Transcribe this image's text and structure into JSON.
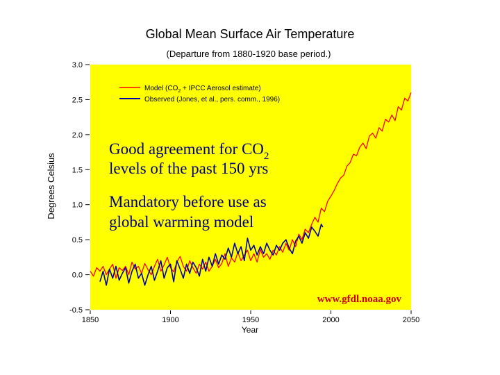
{
  "chart_data": {
    "type": "line",
    "title": "Global Mean Surface Air Temperature",
    "subtitle": "(Departure from 1880-1920 base period.)",
    "xlabel": "Year",
    "ylabel": "Degrees Celsius",
    "xlim": [
      1850,
      2050
    ],
    "ylim": [
      -0.5,
      3.0
    ],
    "x_ticks": [
      1850,
      1900,
      1950,
      2000,
      2050
    ],
    "y_ticks": [
      -0.5,
      0.0,
      0.5,
      1.0,
      1.5,
      2.0,
      2.5,
      3.0
    ],
    "y_tick_labels": [
      "-0.5",
      "0.0",
      "0.5",
      "1.0",
      "1.5",
      "2.0",
      "2.5",
      "3.0"
    ],
    "grid": false,
    "background": "#ffff00",
    "legend_position": "top-left",
    "series": [
      {
        "name_pre": "Model (CO",
        "name_sub": "2",
        "name_post": " + IPCC Aerosol estimate)",
        "color": "#ff0000",
        "x": [
          1850,
          1852,
          1854,
          1856,
          1858,
          1860,
          1862,
          1864,
          1866,
          1868,
          1870,
          1872,
          1874,
          1876,
          1878,
          1880,
          1882,
          1884,
          1886,
          1888,
          1890,
          1892,
          1894,
          1896,
          1898,
          1900,
          1902,
          1904,
          1906,
          1908,
          1910,
          1912,
          1914,
          1916,
          1918,
          1920,
          1922,
          1924,
          1926,
          1928,
          1930,
          1932,
          1934,
          1936,
          1938,
          1940,
          1942,
          1944,
          1946,
          1948,
          1950,
          1952,
          1954,
          1956,
          1958,
          1960,
          1962,
          1964,
          1966,
          1968,
          1970,
          1972,
          1974,
          1976,
          1978,
          1980,
          1982,
          1984,
          1986,
          1988,
          1990,
          1992,
          1994,
          1996,
          1998,
          2000,
          2002,
          2004,
          2006,
          2008,
          2010,
          2012,
          2014,
          2016,
          2018,
          2020,
          2022,
          2024,
          2026,
          2028,
          2030,
          2032,
          2034,
          2036,
          2038,
          2040,
          2042,
          2044,
          2046,
          2048,
          2050
        ],
        "values": [
          0.05,
          -0.02,
          0.1,
          0.05,
          0.12,
          0.0,
          0.08,
          0.15,
          -0.05,
          0.1,
          0.06,
          0.12,
          0.0,
          0.18,
          0.08,
          0.12,
          0.02,
          0.16,
          0.07,
          0.0,
          0.12,
          0.22,
          0.05,
          0.14,
          0.25,
          0.1,
          0.04,
          0.18,
          0.26,
          0.12,
          0.05,
          0.2,
          0.1,
          0.02,
          0.15,
          0.08,
          0.18,
          0.05,
          0.12,
          0.22,
          0.1,
          0.16,
          0.3,
          0.12,
          0.24,
          0.18,
          0.32,
          0.2,
          0.28,
          0.35,
          0.2,
          0.3,
          0.18,
          0.36,
          0.25,
          0.3,
          0.22,
          0.35,
          0.28,
          0.4,
          0.32,
          0.45,
          0.35,
          0.5,
          0.4,
          0.58,
          0.5,
          0.65,
          0.6,
          0.72,
          0.82,
          0.75,
          0.95,
          0.9,
          1.05,
          1.12,
          1.2,
          1.3,
          1.38,
          1.42,
          1.55,
          1.6,
          1.72,
          1.7,
          1.82,
          1.88,
          1.8,
          1.98,
          2.02,
          1.95,
          2.1,
          2.05,
          2.22,
          2.18,
          2.28,
          2.2,
          2.4,
          2.35,
          2.52,
          2.48,
          2.6
        ]
      },
      {
        "name": "Observed (Jones, et al., pers. comm., 1996)",
        "color": "#0000aa",
        "x": [
          1856,
          1858,
          1860,
          1862,
          1864,
          1866,
          1868,
          1870,
          1872,
          1874,
          1876,
          1878,
          1880,
          1882,
          1884,
          1886,
          1888,
          1890,
          1892,
          1894,
          1896,
          1898,
          1900,
          1902,
          1904,
          1906,
          1908,
          1910,
          1912,
          1914,
          1916,
          1918,
          1920,
          1922,
          1924,
          1926,
          1928,
          1930,
          1932,
          1934,
          1936,
          1938,
          1940,
          1942,
          1944,
          1946,
          1948,
          1950,
          1952,
          1954,
          1956,
          1958,
          1960,
          1962,
          1964,
          1966,
          1968,
          1970,
          1972,
          1974,
          1976,
          1978,
          1980,
          1982,
          1984,
          1986,
          1988,
          1990,
          1992,
          1994,
          1995
        ],
        "values": [
          -0.1,
          0.05,
          -0.15,
          0.08,
          -0.05,
          0.12,
          -0.08,
          0.02,
          0.1,
          -0.12,
          0.05,
          0.15,
          -0.05,
          0.02,
          -0.15,
          0.0,
          0.12,
          -0.08,
          0.05,
          0.2,
          -0.05,
          0.1,
          0.15,
          -0.1,
          0.2,
          0.08,
          -0.05,
          0.15,
          0.02,
          0.18,
          0.1,
          -0.02,
          0.22,
          0.05,
          0.25,
          0.12,
          0.3,
          0.15,
          0.28,
          0.22,
          0.38,
          0.25,
          0.45,
          0.3,
          0.4,
          0.2,
          0.52,
          0.35,
          0.42,
          0.28,
          0.4,
          0.3,
          0.45,
          0.35,
          0.28,
          0.42,
          0.35,
          0.45,
          0.5,
          0.38,
          0.3,
          0.48,
          0.55,
          0.45,
          0.6,
          0.52,
          0.68,
          0.62,
          0.55,
          0.72,
          0.68
        ]
      }
    ]
  },
  "annotations": {
    "agreement_line1_pre": "Good agreement for CO",
    "agreement_line1_sub": "2",
    "agreement_line2": "levels of the past 150 yrs",
    "mandatory_line1": "Mandatory before use as",
    "mandatory_line2": "global warming model",
    "source": "www.gfdl.noaa.gov"
  },
  "colors": {
    "plot_background": "#ffff00",
    "source_text": "#cc0000",
    "annotation_text": "#000080"
  }
}
